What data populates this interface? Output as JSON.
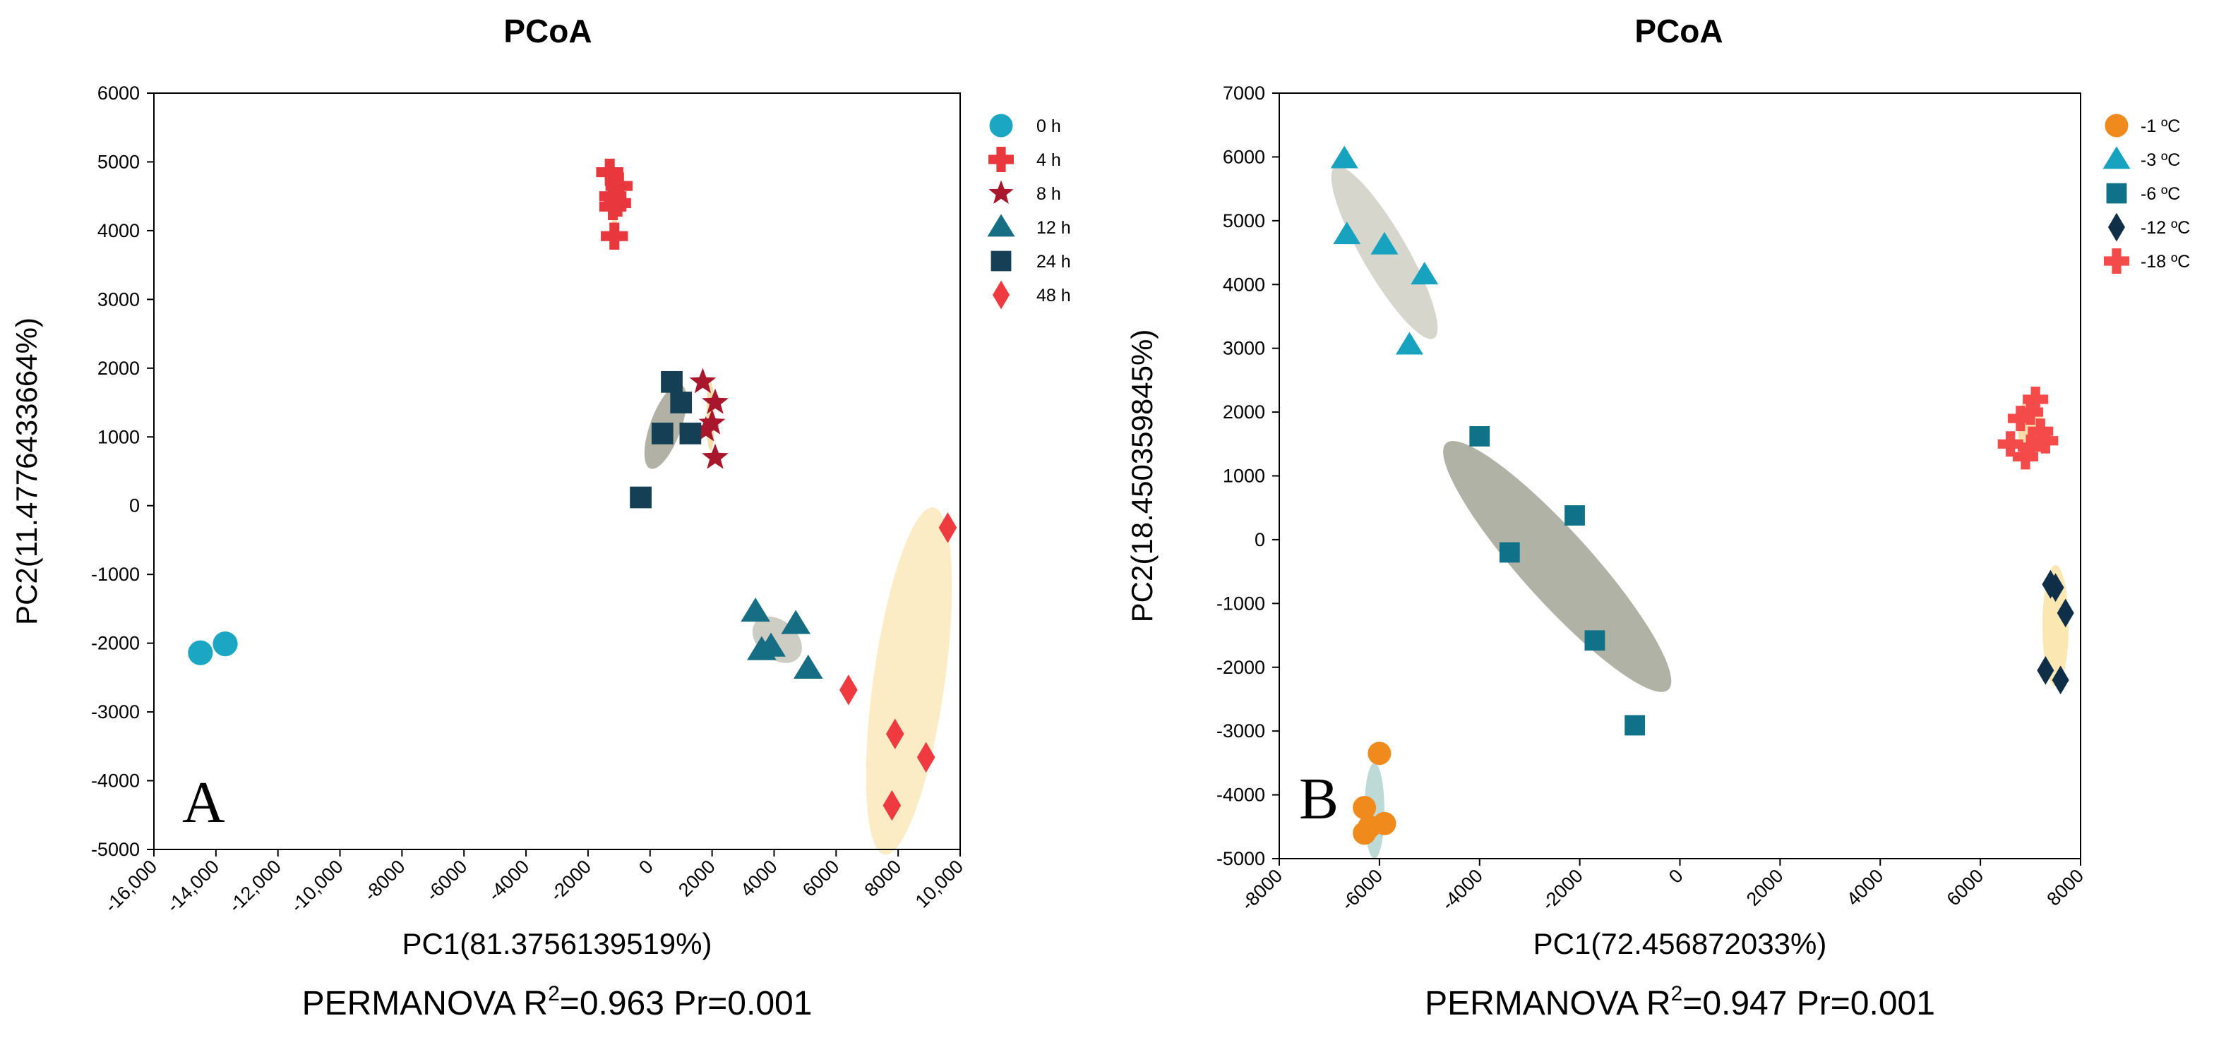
{
  "chart_data": [
    {
      "type": "scatter",
      "panel_label": "A",
      "title": "PCoA",
      "xlabel": "PC1(81.3756139519%)",
      "ylabel": "PC2(11.4776433664%)",
      "xlim": [
        -16000,
        10000
      ],
      "ylim": [
        -5000,
        6000
      ],
      "x_ticks": [
        -16000,
        -14000,
        -12000,
        -10000,
        -8000,
        -6000,
        -4000,
        -2000,
        0,
        2000,
        4000,
        6000,
        8000,
        10000
      ],
      "x_tick_labels": [
        "-16,000",
        "-14,000",
        "-12,000",
        "-10,000",
        "-8000",
        "-6000",
        "-4000",
        "-2000",
        "0",
        "2000",
        "4000",
        "6000",
        "8000",
        "10,000"
      ],
      "y_ticks": [
        -5000,
        -4000,
        -3000,
        -2000,
        -1000,
        0,
        1000,
        2000,
        3000,
        4000,
        5000,
        6000
      ],
      "y_tick_labels": [
        "-5000",
        "-4000",
        "-3000",
        "-2000",
        "-1000",
        "0",
        "1000",
        "2000",
        "3000",
        "4000",
        "5000",
        "6000"
      ],
      "grid": false,
      "legend_position": "right",
      "stat_text": {
        "prefix": "PERMANOVA  R",
        "sup": "2",
        "suffix": "=0.963  Pr=0.001"
      },
      "series": [
        {
          "name": "0 h",
          "marker": "circle",
          "color": "#1ba6c4",
          "points": [
            [
              -14500,
              -2140
            ],
            [
              -13700,
              -2010
            ]
          ],
          "ellipse": null
        },
        {
          "name": "4 h",
          "marker": "plus",
          "color": "#e8383d",
          "points": [
            [
              -1300,
              4850
            ],
            [
              -1200,
              4500
            ],
            [
              -1000,
              4650
            ],
            [
              -1200,
              4350
            ],
            [
              -1150,
              3920
            ],
            [
              -1050,
              4400
            ]
          ],
          "ellipse": {
            "cx": -1150,
            "cy": 4400,
            "rx": 120,
            "ry": 350,
            "angle": 0,
            "color": "#f6d9a0"
          }
        },
        {
          "name": "8 h",
          "marker": "star",
          "color": "#a8172b",
          "points": [
            [
              1700,
              1800
            ],
            [
              2100,
              1500
            ],
            [
              2000,
              1200
            ],
            [
              1800,
              1100
            ],
            [
              2100,
              700
            ]
          ],
          "ellipse": {
            "cx": 1950,
            "cy": 1300,
            "rx": 130,
            "ry": 500,
            "angle": 0,
            "color": "#f6d9a0"
          }
        },
        {
          "name": "12 h",
          "marker": "triangle",
          "color": "#156e84",
          "points": [
            [
              3400,
              -1540
            ],
            [
              4700,
              -1720
            ],
            [
              3600,
              -2100
            ],
            [
              3900,
              -2050
            ],
            [
              5100,
              -2370
            ]
          ],
          "ellipse": {
            "cx": 4100,
            "cy": -1950,
            "rx": 900,
            "ry": 280,
            "angle": 40,
            "color": "#c8c8bc"
          }
        },
        {
          "name": "24 h",
          "marker": "square",
          "color": "#143f55",
          "points": [
            [
              -300,
              120
            ],
            [
              400,
              1050
            ],
            [
              700,
              1800
            ],
            [
              1000,
              1500
            ],
            [
              1300,
              1050
            ]
          ],
          "ellipse": {
            "cx": 500,
            "cy": 1150,
            "rx": 500,
            "ry": 650,
            "angle": 20,
            "color": "#a9a99c"
          }
        },
        {
          "name": "48 h",
          "marker": "diamond",
          "color": "#ef3b3f",
          "points": [
            [
              6400,
              -2680
            ],
            [
              7900,
              -3320
            ],
            [
              8900,
              -3660
            ],
            [
              7800,
              -4360
            ],
            [
              9600,
              -320
            ]
          ],
          "ellipse": {
            "cx": 8350,
            "cy": -2550,
            "rx": 1150,
            "ry": 2550,
            "angle": 8,
            "color": "#fbeac0"
          }
        }
      ]
    },
    {
      "type": "scatter",
      "panel_label": "B",
      "title": "PCoA",
      "xlabel": "PC1(72.456872033%)",
      "ylabel": "PC2(18.450359845%)",
      "xlim": [
        -8000,
        8000
      ],
      "ylim": [
        -5000,
        7000
      ],
      "x_ticks": [
        -8000,
        -6000,
        -4000,
        -2000,
        0,
        2000,
        4000,
        6000,
        8000
      ],
      "x_tick_labels": [
        "-8000",
        "-6000",
        "-4000",
        "-2000",
        "0",
        "2000",
        "4000",
        "6000",
        "8000"
      ],
      "y_ticks": [
        -5000,
        -4000,
        -3000,
        -2000,
        -1000,
        0,
        1000,
        2000,
        3000,
        4000,
        5000,
        6000,
        7000
      ],
      "y_tick_labels": [
        "-5000",
        "-4000",
        "-3000",
        "-2000",
        "-1000",
        "0",
        "1000",
        "2000",
        "3000",
        "4000",
        "5000",
        "6000",
        "7000"
      ],
      "grid": false,
      "legend_position": "right",
      "stat_text": {
        "prefix": "PERMANOVA  R",
        "sup": "2",
        "suffix": "=0.947  Pr=0.001"
      },
      "series": [
        {
          "name": "-1 ºC",
          "marker": "circle",
          "color": "#f08a1c",
          "points": [
            [
              -6000,
              -3350
            ],
            [
              -6300,
              -4200
            ],
            [
              -6200,
              -4500
            ],
            [
              -5900,
              -4450
            ],
            [
              -6300,
              -4600
            ]
          ],
          "ellipse": {
            "cx": -6100,
            "cy": -4250,
            "rx": 200,
            "ry": 750,
            "angle": 0,
            "color": "#b7d6d3"
          }
        },
        {
          "name": "-3 ºC",
          "marker": "triangle",
          "color": "#17a3c0",
          "points": [
            [
              -6700,
              5970
            ],
            [
              -6650,
              4780
            ],
            [
              -5900,
              4620
            ],
            [
              -5100,
              4150
            ],
            [
              -5400,
              3050
            ]
          ],
          "ellipse": {
            "cx": -5900,
            "cy": 4500,
            "rx": 450,
            "ry": 1550,
            "angle": -30,
            "color": "#d2d2c8"
          }
        },
        {
          "name": "-6 ºC",
          "marker": "square",
          "color": "#107288",
          "points": [
            [
              -4000,
              1620
            ],
            [
              -3400,
              -200
            ],
            [
              -2100,
              380
            ],
            [
              -1700,
              -1580
            ],
            [
              -900,
              -2910
            ]
          ],
          "ellipse": {
            "cx": -2450,
            "cy": -420,
            "rx": 700,
            "ry": 2600,
            "angle": -42,
            "color": "#a7aa9c"
          }
        },
        {
          "name": "-12 ºC",
          "marker": "diamond",
          "color": "#0f2f48",
          "points": [
            [
              7400,
              -700
            ],
            [
              7500,
              -750
            ],
            [
              7700,
              -1150
            ],
            [
              7300,
              -2050
            ],
            [
              7600,
              -2200
            ]
          ],
          "ellipse": {
            "cx": 7500,
            "cy": -1350,
            "rx": 260,
            "ry": 950,
            "angle": 0,
            "color": "#fbe4a8"
          }
        },
        {
          "name": "-18 ºC",
          "marker": "plus",
          "color": "#f44a4a",
          "points": [
            [
              7100,
              2200
            ],
            [
              7000,
              2000
            ],
            [
              6800,
              1900
            ],
            [
              6600,
              1500
            ],
            [
              7300,
              1550
            ],
            [
              6900,
              1300
            ],
            [
              7000,
              1450
            ],
            [
              7200,
              1700
            ]
          ],
          "ellipse": {
            "cx": 7000,
            "cy": 1750,
            "rx": 250,
            "ry": 500,
            "angle": 0,
            "color": "#f6d9a0"
          }
        }
      ]
    }
  ]
}
